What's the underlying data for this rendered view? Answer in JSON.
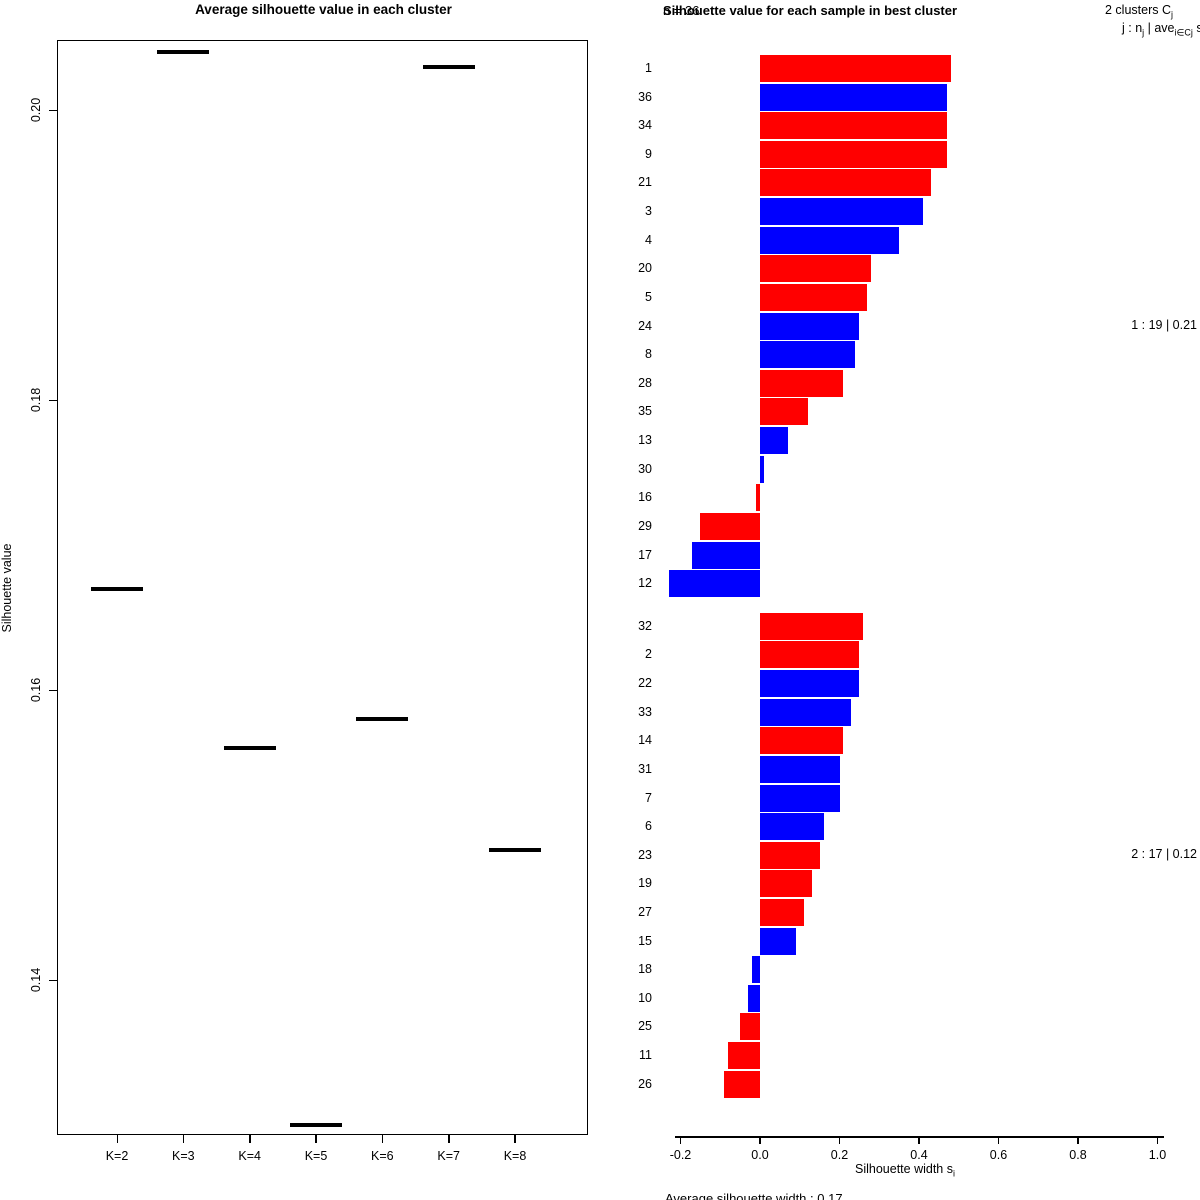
{
  "figure": {
    "background": "#ffffff",
    "text_color": "#000000"
  },
  "chart_data": [
    {
      "type": "scatter",
      "marker": "horizontal-dash",
      "title": "Average silhouette value in each cluster",
      "xlabel": "",
      "ylabel": "Silhouette value",
      "categories": [
        "K=2",
        "K=3",
        "K=4",
        "K=5",
        "K=6",
        "K=7",
        "K=8"
      ],
      "values": [
        0.167,
        0.204,
        0.156,
        0.13,
        0.158,
        0.203,
        0.149
      ],
      "ylim": [
        0.128,
        0.207
      ],
      "yticks": [
        0.2,
        0.18,
        0.16,
        0.14
      ],
      "ytick_labels": [
        "0.20",
        "0.18",
        "0.16",
        "0.14"
      ],
      "grid": false,
      "marker_color": "#000000"
    },
    {
      "type": "bar",
      "orientation": "horizontal",
      "title": "Silhouette value for each sample in best cluster",
      "n_label": "n = 36",
      "legend_line1": "2 clusters Cj",
      "legend_line1_segments": [
        [
          "2 clusters C",
          false
        ],
        [
          "j",
          true
        ]
      ],
      "legend_line2": "j : nj | avei∈Cj si",
      "legend_line2_segments": [
        [
          "j :  n",
          false
        ],
        [
          "j",
          true
        ],
        [
          " | ave",
          false
        ],
        [
          "i∈Cj",
          true
        ],
        [
          " s",
          false
        ],
        [
          "i",
          true
        ]
      ],
      "xlabel": "Silhouette width si",
      "xlabel_segments": [
        [
          "Silhouette width s",
          false
        ],
        [
          "i",
          true
        ]
      ],
      "footer": "Average silhouette width : 0.17",
      "xlim": [
        -0.2,
        1.0
      ],
      "xticks": [
        -0.2,
        0.0,
        0.2,
        0.4,
        0.6,
        0.8,
        1.0
      ],
      "xtick_labels": [
        "-0.2",
        "0.0",
        "0.2",
        "0.4",
        "0.6",
        "0.8",
        "1.0"
      ],
      "grid": false,
      "bar_colors": {
        "red": "#ff0000",
        "blue": "#0000ff"
      },
      "clusters": [
        {
          "summary": "1 :  19 | 0.21",
          "n": 19,
          "avg": 0.21,
          "samples": [
            "1",
            "36",
            "34",
            "9",
            "21",
            "3",
            "4",
            "20",
            "5",
            "24",
            "8",
            "28",
            "35",
            "13",
            "30",
            "16",
            "29",
            "17",
            "12"
          ],
          "values": [
            0.48,
            0.47,
            0.47,
            0.47,
            0.43,
            0.41,
            0.35,
            0.28,
            0.27,
            0.25,
            0.24,
            0.21,
            0.12,
            0.07,
            0.01,
            -0.01,
            -0.15,
            -0.17,
            -0.23
          ],
          "colors": [
            "red",
            "blue",
            "red",
            "red",
            "red",
            "blue",
            "blue",
            "red",
            "red",
            "blue",
            "blue",
            "red",
            "red",
            "blue",
            "blue",
            "red",
            "red",
            "blue",
            "blue"
          ]
        },
        {
          "summary": "2 :  17 | 0.12",
          "n": 17,
          "avg": 0.12,
          "samples": [
            "32",
            "2",
            "22",
            "33",
            "14",
            "31",
            "7",
            "6",
            "23",
            "19",
            "27",
            "15",
            "18",
            "10",
            "25",
            "11",
            "26"
          ],
          "values": [
            0.26,
            0.25,
            0.25,
            0.23,
            0.21,
            0.2,
            0.2,
            0.16,
            0.15,
            0.13,
            0.11,
            0.09,
            -0.02,
            -0.03,
            -0.05,
            -0.08,
            -0.09
          ],
          "colors": [
            "red",
            "red",
            "blue",
            "blue",
            "red",
            "blue",
            "blue",
            "blue",
            "red",
            "red",
            "red",
            "blue",
            "blue",
            "blue",
            "red",
            "red",
            "red"
          ]
        }
      ]
    }
  ]
}
